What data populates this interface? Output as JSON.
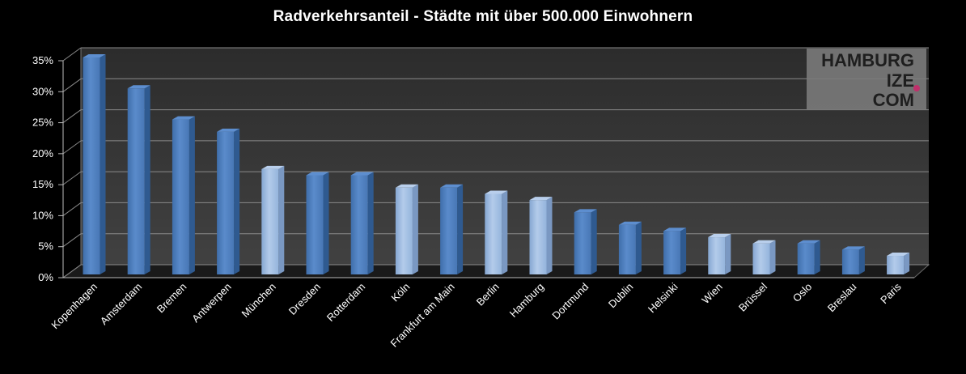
{
  "chart_data": {
    "type": "bar",
    "title": "Radverkehrsanteil - Städte mit über 500.000 Einwohnern",
    "xlabel": "",
    "ylabel": "",
    "ylim": [
      0,
      35
    ],
    "y_ticks": [
      "0%",
      "5%",
      "10%",
      "15%",
      "20%",
      "25%",
      "30%",
      "35%"
    ],
    "y_tick_values": [
      0,
      5,
      10,
      15,
      20,
      25,
      30,
      35
    ],
    "grid": true,
    "categories": [
      "Kopenhagen",
      "Amsterdam",
      "Bremen",
      "Antwerpen",
      "München",
      "Dresden",
      "Rotterdam",
      "Köln",
      "Frankfurt am Main",
      "Berlin",
      "Hamburg",
      "Dortmund",
      "Dublin",
      "Helsinki",
      "Wien",
      "Brüssel",
      "Oslo",
      "Breslau",
      "Paris"
    ],
    "values": [
      35,
      30,
      25,
      23,
      17,
      16,
      16,
      14,
      14,
      13,
      12,
      10,
      8,
      7,
      6,
      5,
      5,
      4,
      3
    ],
    "bar_shade": [
      "dark",
      "dark",
      "dark",
      "dark",
      "light",
      "dark",
      "dark",
      "light",
      "dark",
      "light",
      "light",
      "dark",
      "dark",
      "dark",
      "light",
      "light",
      "dark",
      "dark",
      "light"
    ],
    "colors": {
      "dark": "#4f81bd",
      "light": "#95b3d7",
      "background": "#000000",
      "plot_area": "#3a3a3a"
    }
  },
  "watermark": {
    "lines": [
      "HAMBURG",
      "IZE",
      "COM"
    ],
    "dot_color": "#c0306b"
  }
}
